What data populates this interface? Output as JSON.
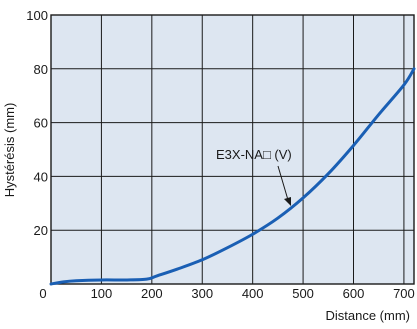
{
  "chart_data": {
    "type": "line",
    "xlabel": "Distance (mm)",
    "ylabel": "Hystérésis (mm)",
    "xlim": [
      0,
      720
    ],
    "ylim": [
      0,
      100
    ],
    "x_ticks": [
      "0",
      "100",
      "200",
      "300",
      "400",
      "500",
      "600",
      "700"
    ],
    "y_ticks": [
      "20",
      "40",
      "60",
      "80",
      "100"
    ],
    "grid": true,
    "plot_background": "#dde6f1",
    "series": [
      {
        "name": "E3X-NA□ (V)",
        "color": "#1a5fb4",
        "x": [
          0,
          25,
          50,
          100,
          150,
          190,
          210,
          250,
          300,
          350,
          400,
          450,
          500,
          550,
          600,
          650,
          700,
          720
        ],
        "y": [
          0,
          0.8,
          1.2,
          1.5,
          1.5,
          1.8,
          3,
          5.5,
          9,
          13.5,
          18.5,
          24.5,
          32,
          41,
          51.5,
          63,
          74,
          80
        ]
      }
    ],
    "annotations": [
      {
        "text": "E3X-NA□ (V)",
        "points_to_x": 450,
        "points_to_y": 25
      }
    ]
  }
}
